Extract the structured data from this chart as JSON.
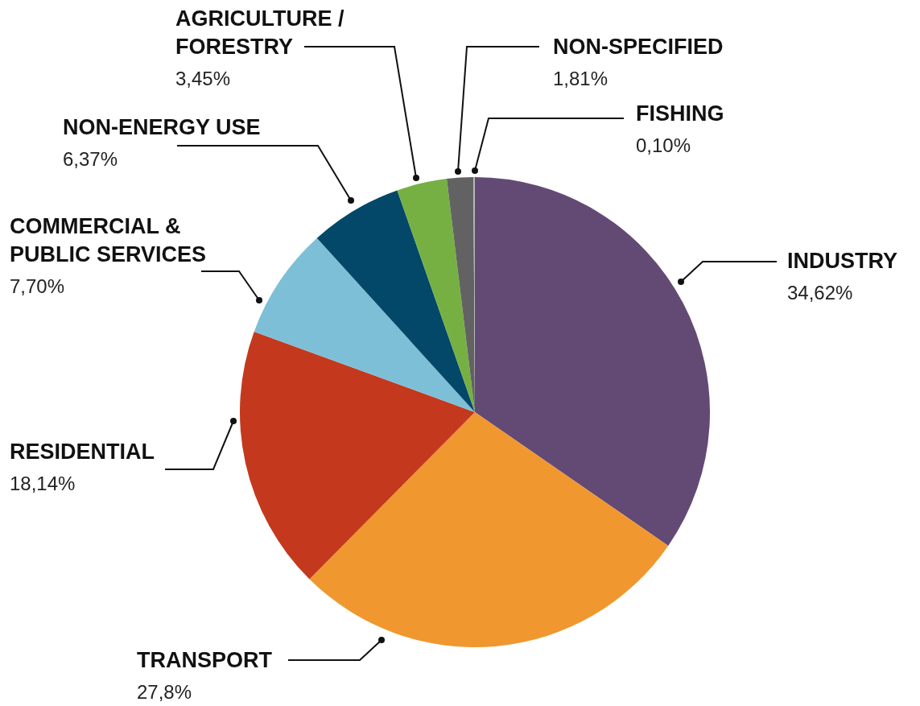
{
  "chart_data": {
    "type": "pie",
    "categories": [
      "INDUSTRY",
      "TRANSPORT",
      "RESIDENTIAL",
      "COMMERCIAL & PUBLIC SERVICES",
      "NON-ENERGY USE",
      "AGRICULTURE / FORESTRY",
      "NON-SPECIFIED",
      "FISHING"
    ],
    "values": [
      34.62,
      27.8,
      18.14,
      7.7,
      6.37,
      3.45,
      1.81,
      0.1
    ],
    "value_labels": [
      "34,62%",
      "27,8%",
      "18,14%",
      "7,70%",
      "6,37%",
      "3,45%",
      "1,81%",
      "0,10%"
    ],
    "colors": [
      "#634a75",
      "#f0972f",
      "#c4391d",
      "#7dbfd7",
      "#034868",
      "#76b043",
      "#626262",
      "#b3b3b3"
    ]
  }
}
